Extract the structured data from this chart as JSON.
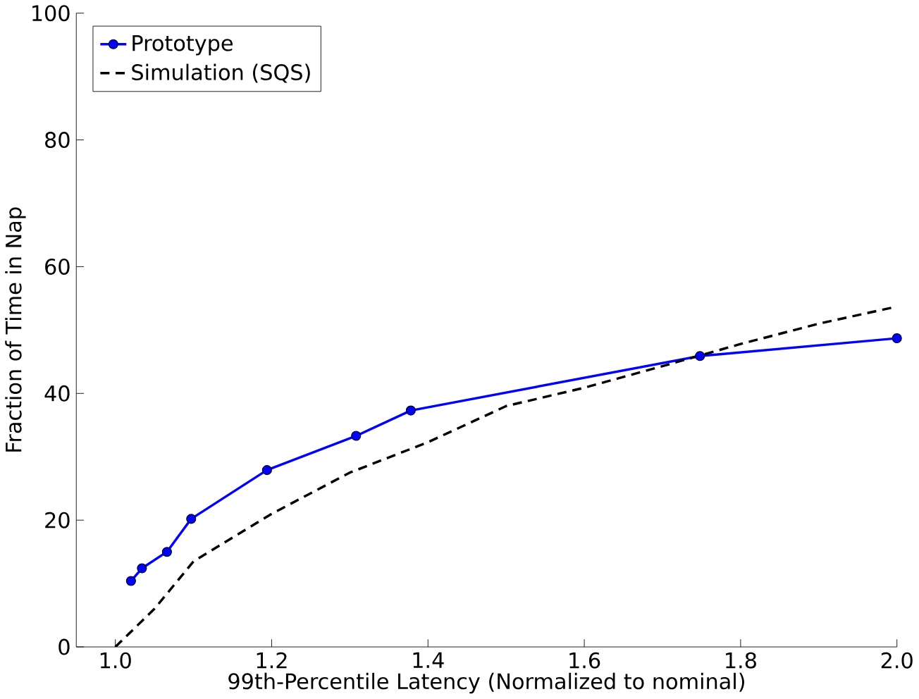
{
  "chart_data": {
    "type": "line",
    "xlabel": "99th-Percentile Latency (Normalized to nominal)",
    "ylabel": "Fraction of Time in Nap",
    "xlim": [
      0.95,
      2.0
    ],
    "xticks": [
      {
        "value": 1.0,
        "label": "1.0"
      },
      1.2,
      1.4,
      1.6,
      1.8,
      {
        "value": 2.0,
        "label": "2.0"
      }
    ],
    "ylim": [
      0,
      100
    ],
    "yticks": [
      0,
      20,
      40,
      60,
      80,
      100
    ],
    "grid": false,
    "legend": "top left",
    "series": [
      {
        "name": "Prototype",
        "color": "#0000ff",
        "marker": "circle",
        "line_style": "solid",
        "x": [
          1.02,
          1.034,
          1.066,
          1.097,
          1.194,
          1.308,
          1.378,
          1.748,
          2.0
        ],
        "values": [
          10.4,
          12.4,
          15.0,
          20.2,
          27.9,
          33.3,
          37.3,
          45.9,
          48.7
        ]
      },
      {
        "name": "Simulation (SQS)",
        "color": "#000000",
        "marker": "none",
        "line_style": "dashed",
        "x": [
          1.0,
          1.05,
          1.1,
          1.2,
          1.3,
          1.4,
          1.5,
          1.6,
          1.7,
          1.8,
          1.9,
          2.0
        ],
        "values": [
          0,
          6,
          13.5,
          21,
          27.5,
          32.3,
          38,
          40.9,
          44.3,
          47.8,
          51,
          53.7
        ]
      }
    ]
  }
}
